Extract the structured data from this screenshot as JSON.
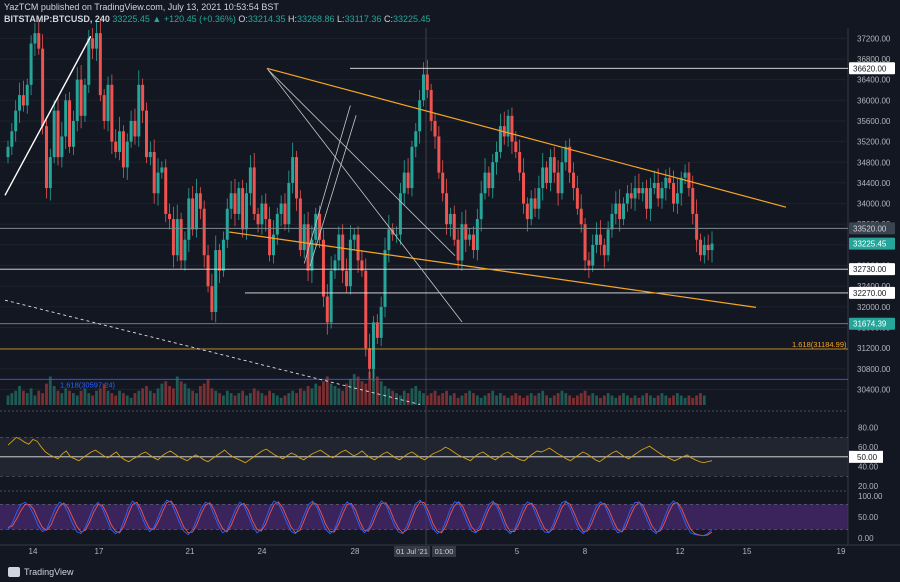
{
  "header": {
    "publisher_line": "YazTCM published on TradingView.com, July 13, 2021 10:53:54 BST",
    "symbol": "BITSTAMP:BTCUSD, 240",
    "last": "33225.45",
    "change": "▲ +120.45 (+0.36%)",
    "o_label": "O:",
    "o": "33214.35",
    "h_label": "H:",
    "h": "33268.86",
    "l_label": "L:",
    "l": "33117.36",
    "c_label": "C:",
    "c": "33225.45"
  },
  "footer": {
    "brand": "TradingView"
  },
  "colors": {
    "up": "#26a69a",
    "down": "#ef5350",
    "trendline": "#f5a623",
    "white": "#ffffff",
    "rsi": "#d4a017",
    "stoch_k": "#2962ff",
    "stoch_d": "#ef5350",
    "stoch_band": "#4a2a70",
    "rsi_band": "#2a2e39"
  },
  "chart_data": [
    {
      "type": "candlestick",
      "ylim": [
        30100,
        37400
      ],
      "y_ticks": [
        "37200.00",
        "36800.00",
        "36400.00",
        "36000.00",
        "35600.00",
        "35200.00",
        "34800.00",
        "34400.00",
        "34000.00",
        "33600.00",
        "33200.00",
        "32800.00",
        "32400.00",
        "32000.00",
        "31600.00",
        "31200.00",
        "30800.00",
        "30400.00"
      ],
      "x_ticks": [
        "14",
        "17",
        "21",
        "24",
        "28",
        "01 Jul '21",
        "01:00",
        "5",
        "8",
        "12",
        "15",
        "19"
      ],
      "price_labels": [
        {
          "text": "36620.00",
          "value": 36620,
          "kind": "white"
        },
        {
          "text": "33520.00",
          "value": 33520,
          "kind": "dark"
        },
        {
          "text": "33225.45",
          "value": 33225.45,
          "kind": "teal"
        },
        {
          "text": "32730.00",
          "value": 32730,
          "kind": "white"
        },
        {
          "text": "32270.00",
          "value": 32270,
          "kind": "white"
        },
        {
          "text": "31674.39",
          "value": 31674.39,
          "kind": "teal"
        }
      ],
      "horizontal_levels": [
        {
          "value": 36620,
          "color": "white"
        },
        {
          "value": 33520,
          "color": "grey"
        },
        {
          "value": 32730,
          "color": "white"
        },
        {
          "value": 32270,
          "color": "white"
        },
        {
          "value": 31674.39,
          "color": "grey"
        }
      ],
      "fib_levels": [
        {
          "text": "1.618(31184.99)",
          "value": 31184.99,
          "color": "#f5a623"
        },
        {
          "text": "1.618(30597.24)",
          "value": 30597.24,
          "color": "#2962ff"
        }
      ],
      "closes": [
        35100,
        35400,
        35800,
        36100,
        35900,
        36300,
        37100,
        37300,
        37000,
        35500,
        34300,
        34900,
        35800,
        34900,
        35300,
        36000,
        35100,
        35600,
        36400,
        35700,
        36300,
        37200,
        37000,
        37300,
        36100,
        35600,
        36300,
        35200,
        35000,
        35400,
        34700,
        35200,
        35600,
        35300,
        36300,
        35800,
        34900,
        35000,
        34200,
        34600,
        34700,
        33800,
        33700,
        33000,
        33700,
        32900,
        33300,
        34100,
        33500,
        34200,
        33900,
        33000,
        32400,
        31900,
        33100,
        32700,
        33300,
        33900,
        34200,
        33800,
        34300,
        33500,
        34200,
        34700,
        33800,
        33600,
        34000,
        33700,
        33000,
        33400,
        33800,
        34000,
        33600,
        34400,
        34900,
        34100,
        33100,
        33600,
        32700,
        33300,
        33800,
        33300,
        32200,
        31700,
        32700,
        32900,
        33400,
        32700,
        32400,
        33300,
        33400,
        32900,
        32700,
        31200,
        30800,
        31700,
        31400,
        32000,
        33100,
        33500,
        33400,
        33400,
        34200,
        34600,
        34300,
        35100,
        35400,
        36000,
        36500,
        36200,
        35600,
        35300,
        34600,
        34200,
        33600,
        33800,
        33300,
        32900,
        33600,
        33300,
        33400,
        33100,
        33700,
        34200,
        34600,
        34300,
        34800,
        35000,
        35500,
        35300,
        35700,
        35200,
        35000,
        34600,
        34000,
        33700,
        34100,
        33900,
        34300,
        34700,
        34400,
        34900,
        34600,
        34200,
        34800,
        35100,
        34600,
        34300,
        33900,
        33600,
        32900,
        32800,
        33200,
        33400,
        33200,
        33000,
        33500,
        33800,
        34000,
        33700,
        34000,
        34200,
        34100,
        34300,
        34200,
        34300,
        33900,
        34300,
        34400,
        34100,
        34300,
        34500,
        34400,
        34000,
        34200,
        34500,
        34600,
        34300,
        33800,
        33300,
        33000,
        33200,
        33100,
        33225
      ],
      "volume": [
        4,
        5,
        6,
        8,
        6,
        5,
        7,
        4,
        6,
        5,
        9,
        12,
        8,
        6,
        5,
        7,
        6,
        5,
        4,
        6,
        7,
        5,
        4,
        6,
        7,
        9,
        6,
        5,
        4,
        6,
        5,
        4,
        3,
        5,
        6,
        7,
        8,
        6,
        5,
        7,
        9,
        10,
        8,
        7,
        12,
        10,
        9,
        7,
        6,
        5,
        8,
        9,
        11,
        7,
        6,
        5,
        4,
        6,
        5,
        4,
        5,
        6,
        4,
        5,
        7,
        6,
        5,
        4,
        6,
        5,
        4,
        3,
        4,
        5,
        6,
        5,
        7,
        6,
        8,
        7,
        9,
        8,
        10,
        12,
        9,
        8,
        7,
        6,
        9,
        11,
        13,
        12,
        10,
        9,
        14,
        16,
        12,
        10,
        8,
        7,
        6,
        5,
        4,
        6,
        5,
        7,
        8,
        6,
        5,
        4,
        5,
        6,
        4,
        5,
        6,
        4,
        5,
        3,
        4,
        5,
        6,
        5,
        4,
        3,
        4,
        5,
        6,
        4,
        5,
        4,
        3,
        4,
        5,
        4,
        3,
        4,
        5,
        4,
        5,
        6,
        4,
        3,
        4,
        5,
        6,
        5,
        4,
        3,
        4,
        5,
        6,
        4,
        5,
        4,
        3,
        4,
        5,
        4,
        3,
        4,
        5,
        4,
        3,
        4,
        3,
        4,
        5,
        4,
        3,
        4,
        5,
        4,
        3,
        4,
        5,
        4,
        3,
        4,
        3,
        4,
        5,
        4
      ]
    },
    {
      "type": "line",
      "name": "RSI",
      "ylim": [
        20,
        90
      ],
      "y_ticks": [
        "80.00",
        "60.00",
        "40.00",
        "20.00"
      ],
      "level_label": "50.00",
      "values": [
        62,
        66,
        70,
        68,
        65,
        63,
        68,
        66,
        60,
        55,
        52,
        50,
        48,
        53,
        56,
        50,
        48,
        46,
        49,
        52,
        55,
        57,
        54,
        51,
        49,
        52,
        55,
        50,
        47,
        45,
        48,
        50,
        53,
        55,
        52,
        49,
        47,
        51,
        54,
        56,
        53,
        50,
        48,
        46,
        49,
        52,
        50,
        47,
        45,
        48,
        51,
        54,
        57,
        53,
        50,
        48,
        46,
        44,
        47,
        50,
        53,
        56,
        58,
        55,
        52,
        50,
        48,
        51,
        54,
        52,
        49,
        47,
        50,
        53,
        55,
        57,
        54,
        51,
        49,
        52,
        55,
        57,
        54,
        51,
        53,
        56,
        52,
        49,
        47,
        50,
        53,
        55,
        52,
        49,
        47,
        50,
        53,
        55,
        52,
        49,
        47,
        50,
        53,
        55,
        57,
        60,
        58,
        55,
        52,
        50,
        48,
        46,
        50,
        53,
        55,
        52,
        49,
        47,
        50,
        53,
        55,
        52,
        49,
        47,
        46,
        50,
        53,
        56,
        55,
        57,
        59,
        56,
        53,
        51,
        48,
        46,
        49,
        52,
        55,
        53,
        50,
        47,
        45,
        48,
        51,
        54,
        56,
        53,
        50,
        48,
        51,
        54,
        57,
        59,
        61,
        58,
        55,
        52,
        50,
        48,
        46,
        48,
        50,
        52,
        49,
        47,
        45,
        44,
        45,
        46
      ]
    },
    {
      "type": "line",
      "name": "Stoch RSI",
      "ylim": [
        -10,
        100
      ],
      "y_ticks": [
        "100.00",
        "50.00",
        "0.00"
      ],
      "k": [
        20,
        35,
        60,
        80,
        85,
        75,
        55,
        30,
        15,
        20,
        45,
        70,
        85,
        80,
        60,
        35,
        15,
        10,
        25,
        50,
        75,
        85,
        70,
        45,
        20,
        10,
        15,
        40,
        70,
        88,
        80,
        55,
        30,
        15,
        25,
        50,
        75,
        90,
        85,
        60,
        35,
        15,
        8,
        20,
        45,
        70,
        85,
        80,
        55,
        30,
        12,
        18,
        42,
        68,
        85,
        78,
        52,
        28,
        12,
        20,
        45,
        72,
        88,
        82,
        60,
        35,
        15,
        10,
        28,
        55,
        80,
        88,
        72,
        45,
        20,
        10,
        18,
        45,
        72,
        86,
        78,
        52,
        26,
        12,
        22,
        48,
        74,
        88,
        80,
        55,
        30,
        14,
        10,
        30,
        58,
        82,
        90,
        76,
        48,
        22,
        10,
        16,
        40,
        68,
        86,
        84,
        62,
        36,
        16,
        12,
        30,
        56,
        80,
        88,
        72,
        46,
        20,
        10,
        20,
        46,
        72,
        86,
        80,
        56,
        30,
        14,
        12,
        32,
        60,
        84,
        88,
        70,
        44,
        20,
        10,
        22,
        48,
        74,
        86,
        78,
        54,
        28,
        12,
        16,
        40,
        66,
        84,
        86,
        66,
        40,
        18,
        10,
        24,
        50,
        76,
        88,
        80,
        56,
        30,
        12,
        8,
        6,
        5,
        10,
        20
      ],
      "d": [
        25,
        28,
        45,
        65,
        80,
        80,
        68,
        45,
        25,
        18,
        30,
        55,
        75,
        83,
        72,
        50,
        28,
        14,
        18,
        38,
        62,
        80,
        78,
        58,
        32,
        16,
        12,
        28,
        55,
        80,
        85,
        68,
        42,
        22,
        20,
        38,
        62,
        84,
        88,
        72,
        48,
        25,
        12,
        14,
        32,
        58,
        78,
        84,
        68,
        42,
        22,
        14,
        30,
        55,
        77,
        82,
        66,
        40,
        20,
        16,
        32,
        58,
        80,
        86,
        72,
        48,
        25,
        12,
        18,
        42,
        68,
        84,
        80,
        58,
        32,
        15,
        14,
        32,
        58,
        80,
        82,
        66,
        38,
        18,
        16,
        35,
        62,
        82,
        84,
        68,
        42,
        22,
        12,
        20,
        44,
        70,
        86,
        84,
        62,
        34,
        16,
        12,
        28,
        54,
        77,
        86,
        74,
        50,
        26,
        14,
        20,
        43,
        68,
        84,
        80,
        60,
        32,
        15,
        15,
        33,
        59,
        79,
        83,
        68,
        43,
        22,
        13,
        22,
        46,
        72,
        86,
        80,
        57,
        32,
        15,
        16,
        35,
        61,
        80,
        82,
        66,
        41,
        20,
        14,
        28,
        53,
        75,
        85,
        76,
        53,
        29,
        14,
        17,
        37,
        63,
        82,
        84,
        68,
        43,
        21,
        10,
        7,
        5,
        7,
        14
      ]
    }
  ]
}
